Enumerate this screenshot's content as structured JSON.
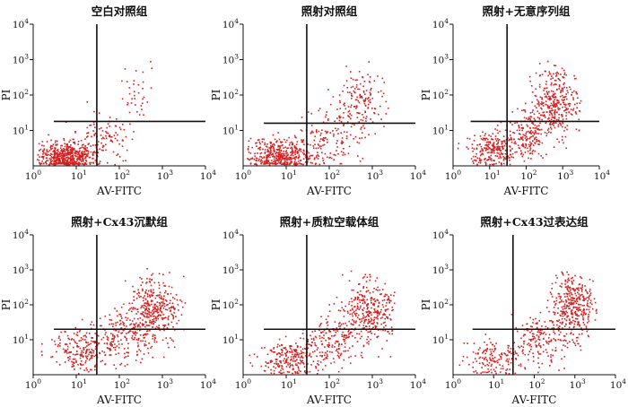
{
  "figure": {
    "point_color": "#d42020",
    "gate_color": "#111111",
    "axis_color": "#111111"
  },
  "chart_data": [
    {
      "type": "scatter",
      "title": "空白对照组",
      "xlabel": "AV-FITC",
      "ylabel": "PI",
      "x_scale": "log",
      "y_scale": "log",
      "xlim": [
        1,
        10000
      ],
      "ylim": [
        1,
        10000
      ],
      "x_ticks": [
        1,
        10,
        100,
        1000,
        10000
      ],
      "y_ticks": [
        10,
        100,
        1000,
        10000
      ],
      "grid": false,
      "quadrant_gate": {
        "x": 30,
        "y": 18
      },
      "clusters": [
        {
          "n": 520,
          "x_median": 6,
          "x_spread": 0.33,
          "y_median": 1.8,
          "y_spread": 0.2
        },
        {
          "n": 110,
          "x_median": 40,
          "x_spread": 0.35,
          "y_median": 6,
          "y_spread": 0.35
        },
        {
          "n": 35,
          "x_median": 300,
          "x_spread": 0.2,
          "y_median": 150,
          "y_spread": 0.45
        }
      ]
    },
    {
      "type": "scatter",
      "title": "照射对照组",
      "xlabel": "AV-FITC",
      "ylabel": "PI",
      "x_scale": "log",
      "y_scale": "log",
      "xlim": [
        1,
        10000
      ],
      "ylim": [
        1,
        10000
      ],
      "x_ticks": [
        1,
        10,
        100,
        1000,
        10000
      ],
      "y_ticks": [
        10,
        100,
        1000,
        10000
      ],
      "grid": false,
      "quadrant_gate": {
        "x": 30,
        "y": 16
      },
      "clusters": [
        {
          "n": 420,
          "x_median": 8,
          "x_spread": 0.35,
          "y_median": 2,
          "y_spread": 0.22
        },
        {
          "n": 130,
          "x_median": 90,
          "x_spread": 0.4,
          "y_median": 5,
          "y_spread": 0.35
        },
        {
          "n": 170,
          "x_median": 500,
          "x_spread": 0.3,
          "y_median": 60,
          "y_spread": 0.45
        }
      ]
    },
    {
      "type": "scatter",
      "title": "照射+无意序列组",
      "xlabel": "AV-FITC",
      "ylabel": "PI",
      "x_scale": "log",
      "y_scale": "log",
      "xlim": [
        1,
        10000
      ],
      "ylim": [
        1,
        10000
      ],
      "x_ticks": [
        1,
        10,
        100,
        1000,
        10000
      ],
      "y_ticks": [
        10,
        100,
        1000,
        10000
      ],
      "grid": false,
      "quadrant_gate": {
        "x": 30,
        "y": 18
      },
      "clusters": [
        {
          "n": 230,
          "x_median": 12,
          "x_spread": 0.35,
          "y_median": 3,
          "y_spread": 0.25
        },
        {
          "n": 200,
          "x_median": 120,
          "x_spread": 0.35,
          "y_median": 8,
          "y_spread": 0.35
        },
        {
          "n": 330,
          "x_median": 600,
          "x_spread": 0.3,
          "y_median": 60,
          "y_spread": 0.45
        }
      ]
    },
    {
      "type": "scatter",
      "title": "照射+Cx43沉默组",
      "xlabel": "AV-FITC",
      "ylabel": "PI",
      "x_scale": "log",
      "y_scale": "log",
      "xlim": [
        1,
        10000
      ],
      "ylim": [
        1,
        10000
      ],
      "x_ticks": [
        1,
        10,
        100,
        1000,
        10000
      ],
      "y_ticks": [
        10,
        100,
        1000,
        10000
      ],
      "grid": false,
      "quadrant_gate": {
        "x": 30,
        "y": 20
      },
      "clusters": [
        {
          "n": 220,
          "x_median": 14,
          "x_spread": 0.35,
          "y_median": 5,
          "y_spread": 0.3
        },
        {
          "n": 200,
          "x_median": 150,
          "x_spread": 0.35,
          "y_median": 12,
          "y_spread": 0.35
        },
        {
          "n": 350,
          "x_median": 650,
          "x_spread": 0.3,
          "y_median": 70,
          "y_spread": 0.45
        }
      ]
    },
    {
      "type": "scatter",
      "title": "照射+质粒空载体组",
      "xlabel": "AV-FITC",
      "ylabel": "PI",
      "x_scale": "log",
      "y_scale": "log",
      "xlim": [
        1,
        10000
      ],
      "ylim": [
        1,
        10000
      ],
      "x_ticks": [
        1,
        10,
        100,
        1000,
        10000
      ],
      "y_ticks": [
        10,
        100,
        1000,
        10000
      ],
      "grid": false,
      "quadrant_gate": {
        "x": 30,
        "y": 20
      },
      "clusters": [
        {
          "n": 230,
          "x_median": 12,
          "x_spread": 0.35,
          "y_median": 3,
          "y_spread": 0.25
        },
        {
          "n": 180,
          "x_median": 120,
          "x_spread": 0.35,
          "y_median": 9,
          "y_spread": 0.35
        },
        {
          "n": 330,
          "x_median": 800,
          "x_spread": 0.3,
          "y_median": 70,
          "y_spread": 0.45
        }
      ]
    },
    {
      "type": "scatter",
      "title": "照射+Cx43过表达组",
      "xlabel": "AV-FITC",
      "ylabel": "PI",
      "x_scale": "log",
      "y_scale": "log",
      "xlim": [
        1,
        10000
      ],
      "ylim": [
        1,
        10000
      ],
      "x_ticks": [
        1,
        10,
        100,
        1000,
        10000
      ],
      "y_ticks": [
        10,
        100,
        1000,
        10000
      ],
      "grid": false,
      "quadrant_gate": {
        "x": 30,
        "y": 20
      },
      "clusters": [
        {
          "n": 150,
          "x_median": 12,
          "x_spread": 0.35,
          "y_median": 3,
          "y_spread": 0.25
        },
        {
          "n": 180,
          "x_median": 150,
          "x_spread": 0.35,
          "y_median": 9,
          "y_spread": 0.35
        },
        {
          "n": 360,
          "x_median": 900,
          "x_spread": 0.28,
          "y_median": 90,
          "y_spread": 0.45
        }
      ]
    }
  ]
}
